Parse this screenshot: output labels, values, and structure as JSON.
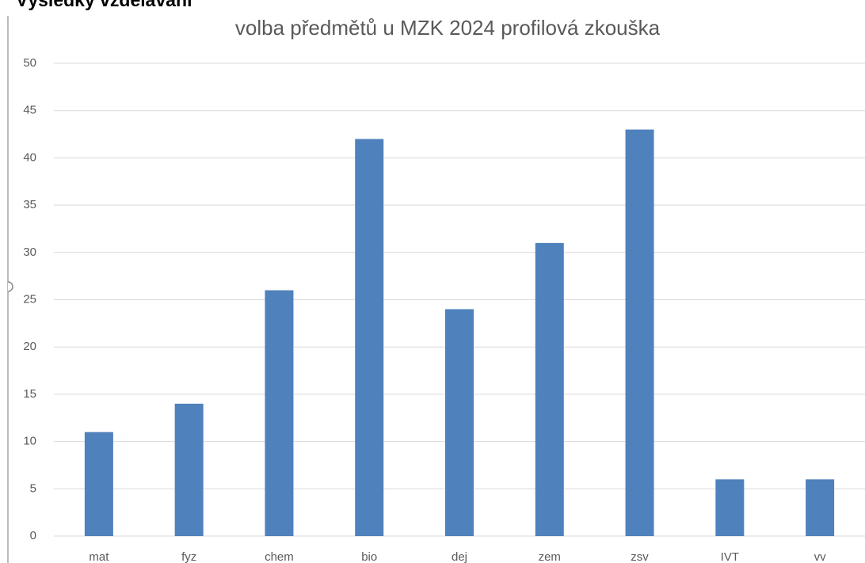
{
  "heading": "Výsledky vzdělávání",
  "chart_data": {
    "type": "bar",
    "title": "volba předmětů u MZK 2024 profilová zkouška",
    "categories": [
      "mat",
      "fyz",
      "chem",
      "bio",
      "dej",
      "zem",
      "zsv",
      "IVT",
      "vv"
    ],
    "values": [
      11,
      14,
      26,
      42,
      24,
      31,
      43,
      6,
      6
    ],
    "color": "#4f81bd",
    "ylim": [
      0,
      50
    ],
    "yticks": [
      0,
      5,
      10,
      15,
      20,
      25,
      30,
      35,
      40,
      45,
      50
    ],
    "grid": true
  }
}
